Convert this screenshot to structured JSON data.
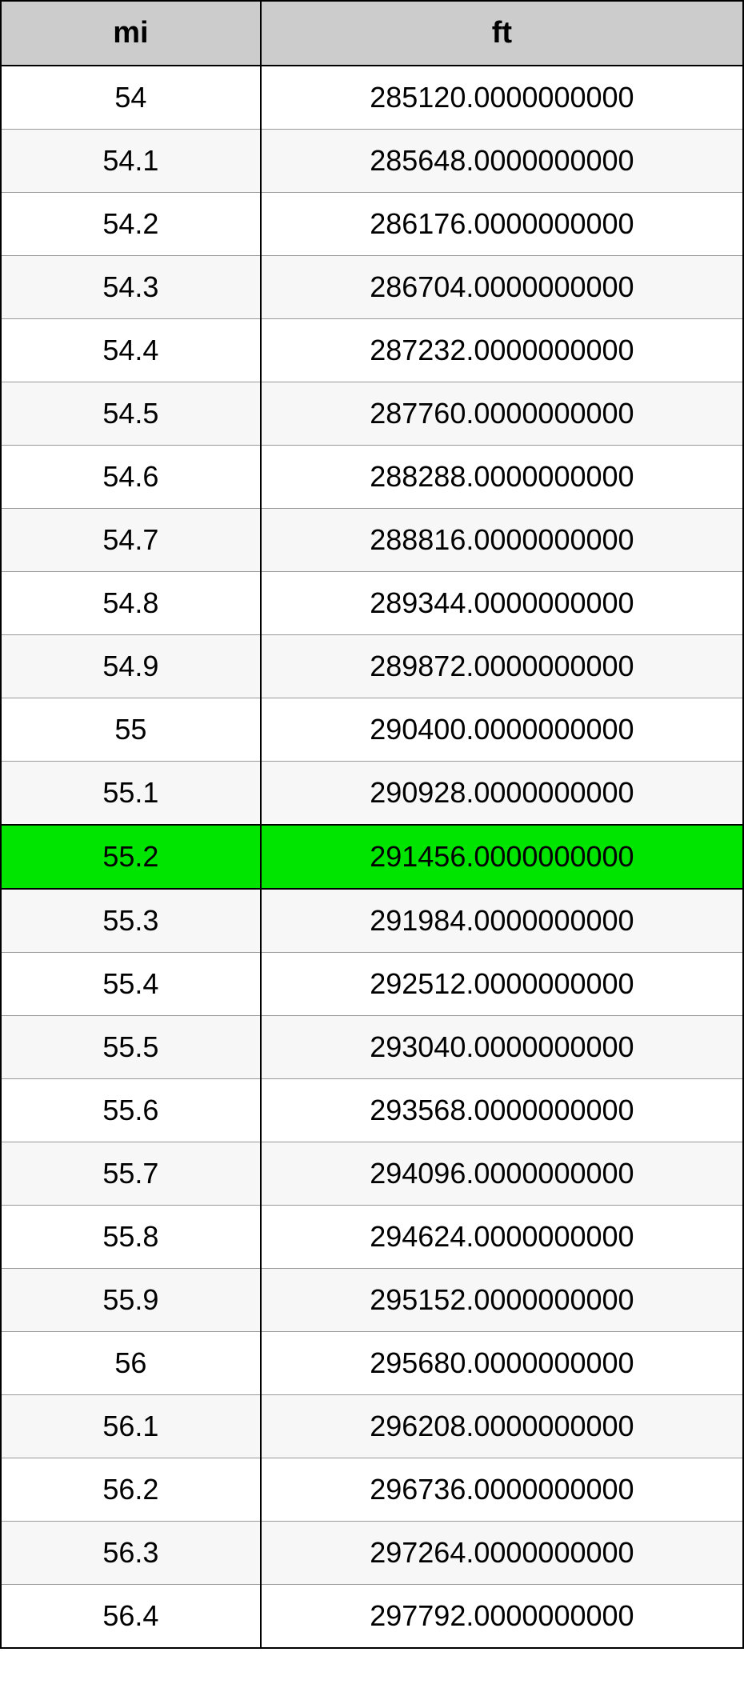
{
  "table": {
    "type": "table",
    "columns": [
      "mi",
      "ft"
    ],
    "column_widths": [
      "35%",
      "65%"
    ],
    "header_bg": "#cccccc",
    "header_fontsize": 38,
    "cell_fontsize": 36,
    "border_color": "#000000",
    "row_stripe_odd": "#ffffff",
    "row_stripe_even": "#f7f7f7",
    "highlight_bg": "#00e500",
    "highlight_index": 12,
    "rows": [
      [
        "54",
        "285120.0000000000"
      ],
      [
        "54.1",
        "285648.0000000000"
      ],
      [
        "54.2",
        "286176.0000000000"
      ],
      [
        "54.3",
        "286704.0000000000"
      ],
      [
        "54.4",
        "287232.0000000000"
      ],
      [
        "54.5",
        "287760.0000000000"
      ],
      [
        "54.6",
        "288288.0000000000"
      ],
      [
        "54.7",
        "288816.0000000000"
      ],
      [
        "54.8",
        "289344.0000000000"
      ],
      [
        "54.9",
        "289872.0000000000"
      ],
      [
        "55",
        "290400.0000000000"
      ],
      [
        "55.1",
        "290928.0000000000"
      ],
      [
        "55.2",
        "291456.0000000000"
      ],
      [
        "55.3",
        "291984.0000000000"
      ],
      [
        "55.4",
        "292512.0000000000"
      ],
      [
        "55.5",
        "293040.0000000000"
      ],
      [
        "55.6",
        "293568.0000000000"
      ],
      [
        "55.7",
        "294096.0000000000"
      ],
      [
        "55.8",
        "294624.0000000000"
      ],
      [
        "55.9",
        "295152.0000000000"
      ],
      [
        "56",
        "295680.0000000000"
      ],
      [
        "56.1",
        "296208.0000000000"
      ],
      [
        "56.2",
        "296736.0000000000"
      ],
      [
        "56.3",
        "297264.0000000000"
      ],
      [
        "56.4",
        "297792.0000000000"
      ]
    ]
  }
}
